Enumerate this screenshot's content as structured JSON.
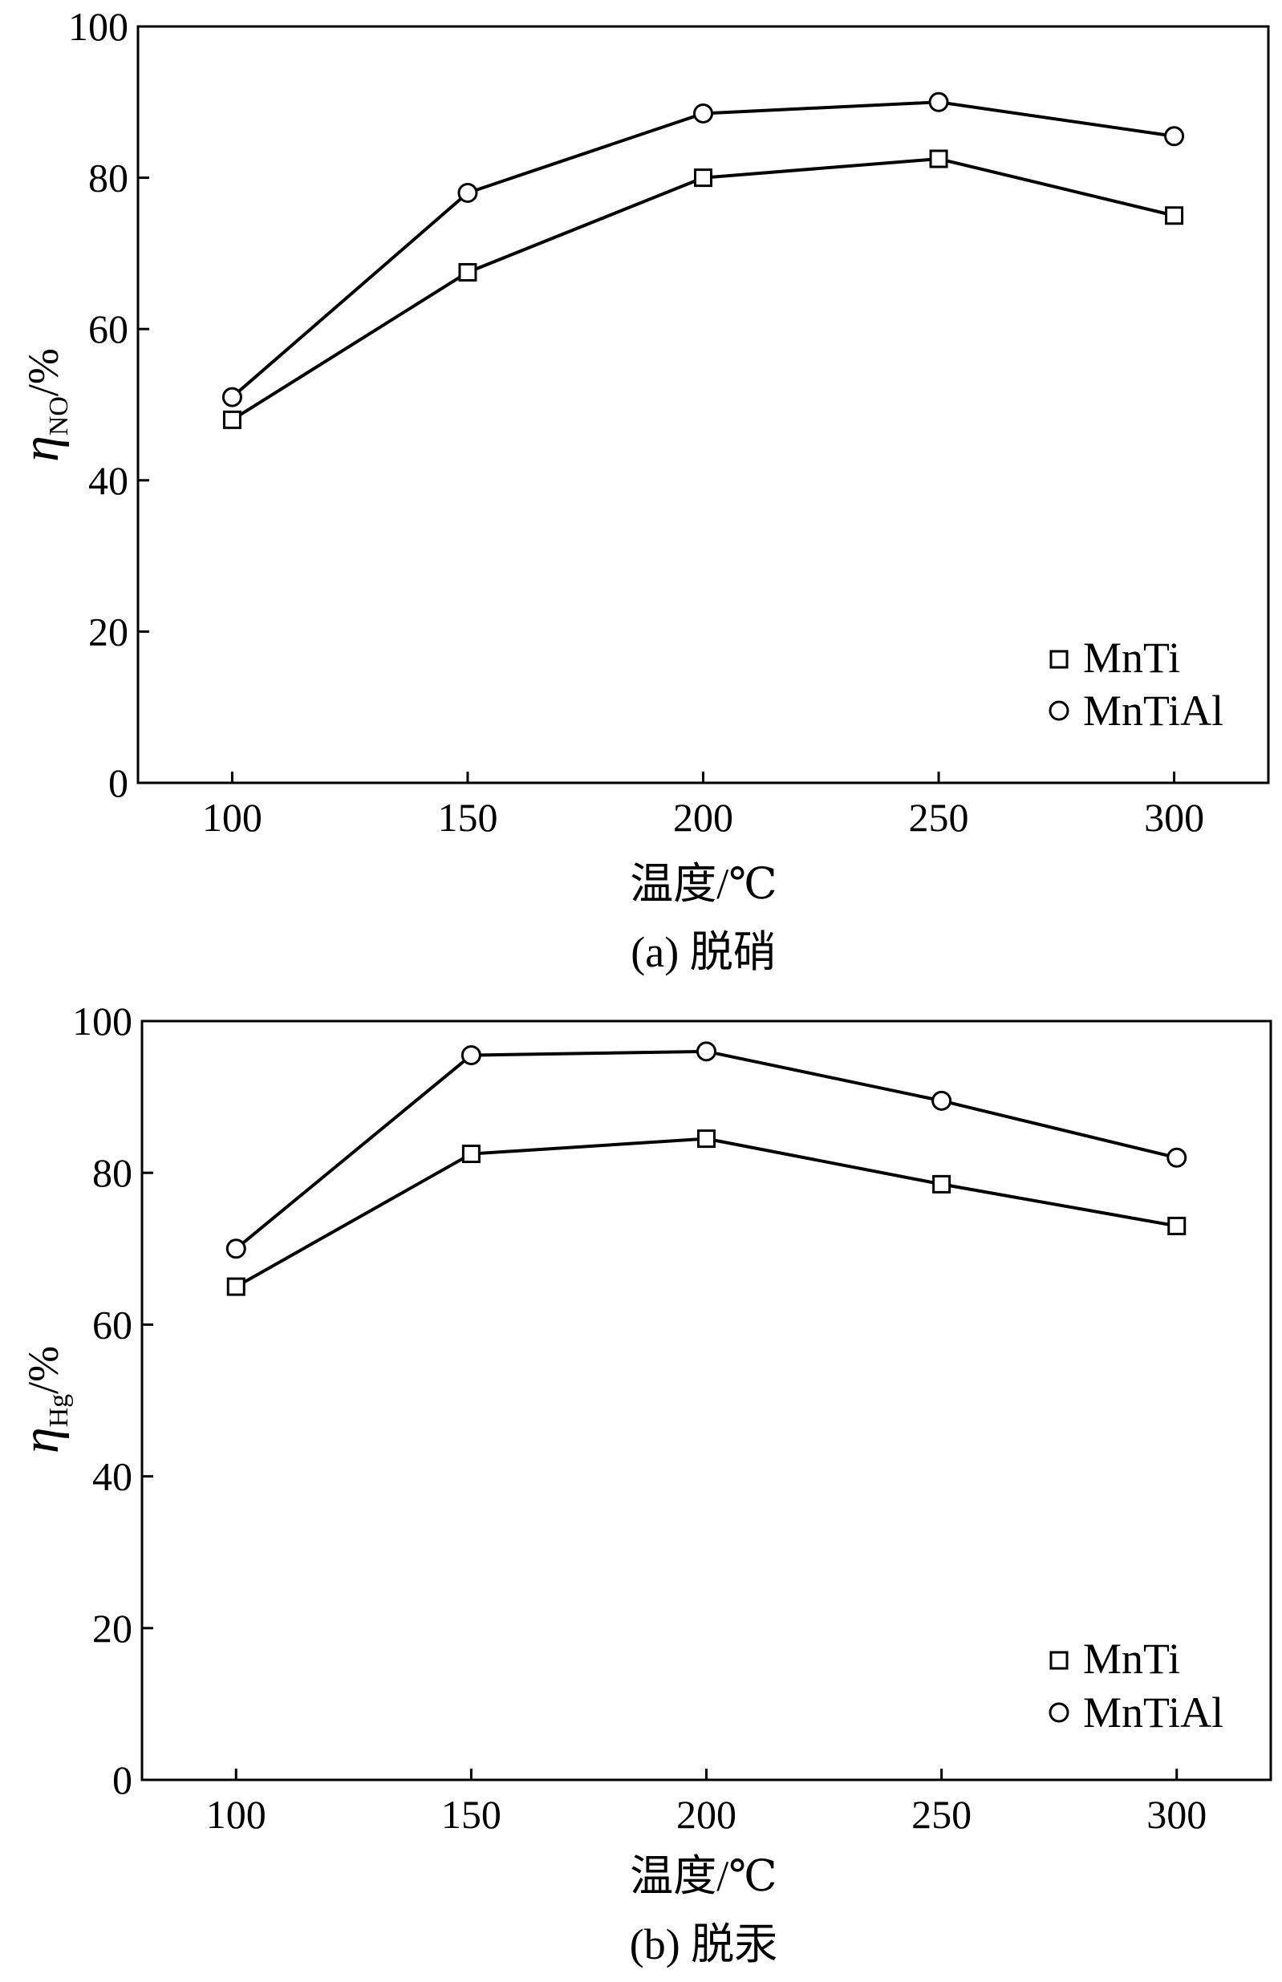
{
  "chart_data": [
    {
      "type": "line",
      "caption": "(a) 脱硝",
      "xlabel": "温度/℃",
      "ylabel": {
        "symbol": "η",
        "subscript": "NO",
        "unit": "/%"
      },
      "x": [
        100,
        150,
        200,
        250,
        300
      ],
      "xlim": [
        80,
        320
      ],
      "ylim": [
        0,
        100
      ],
      "xticks": [
        100,
        150,
        200,
        250,
        300
      ],
      "yticks": [
        0,
        20,
        40,
        60,
        80,
        100
      ],
      "legend_position": "bottom-right",
      "series": [
        {
          "name": "MnTi",
          "marker": "square",
          "values": [
            48,
            67.5,
            80,
            82.5,
            75
          ]
        },
        {
          "name": "MnTiAl",
          "marker": "circle",
          "values": [
            51,
            78,
            88.5,
            90,
            85.5
          ]
        }
      ]
    },
    {
      "type": "line",
      "caption": "(b) 脱汞",
      "xlabel": "温度/℃",
      "ylabel": {
        "symbol": "η",
        "subscript": "Hg",
        "unit": "/%"
      },
      "x": [
        100,
        150,
        200,
        250,
        300
      ],
      "xlim": [
        80,
        320
      ],
      "ylim": [
        0,
        100
      ],
      "xticks": [
        100,
        150,
        200,
        250,
        300
      ],
      "yticks": [
        0,
        20,
        40,
        60,
        80,
        100
      ],
      "legend_position": "bottom-right",
      "series": [
        {
          "name": "MnTi",
          "marker": "square",
          "values": [
            65,
            82.5,
            84.5,
            78.5,
            73
          ]
        },
        {
          "name": "MnTiAl",
          "marker": "circle",
          "values": [
            70,
            95.5,
            96,
            89.5,
            82
          ]
        }
      ]
    }
  ]
}
